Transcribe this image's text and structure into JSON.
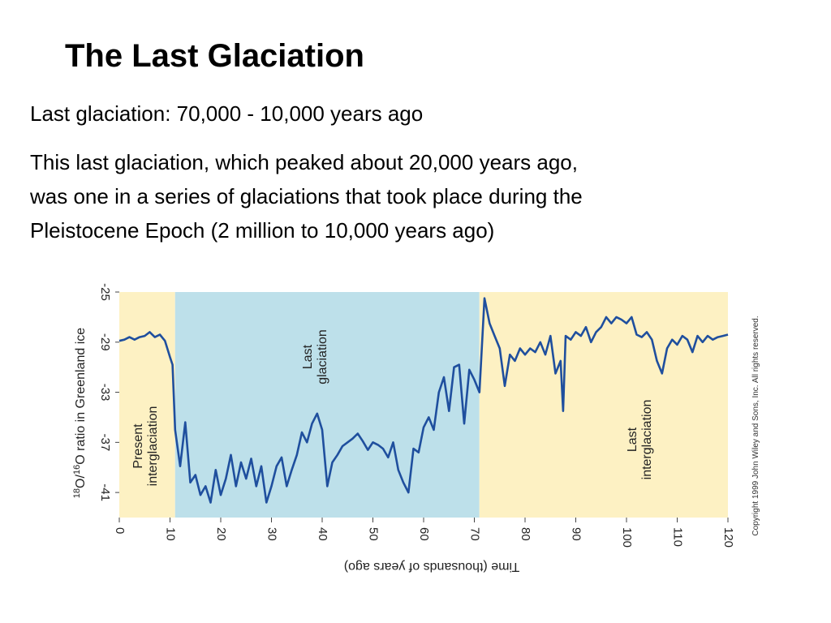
{
  "header": {
    "title": "The Last Glaciation",
    "subtitle": "Last glaciation: 70,000 - 10,000 years ago",
    "paragraph": [
      "This last glaciation, which peaked about 20,000 years ago,",
      "was one in a series of glaciations that took place during the",
      "Pleistocene Epoch (2 million to 10,000 years ago)"
    ]
  },
  "chart_data": {
    "type": "line",
    "xlabel": "Time (thousands of years ago)",
    "ylabel": [
      "18",
      "O/",
      "16",
      "O ratio in Greenland ice"
    ],
    "copyright": "Copyright 1999 John Wiley and Sons, Inc. All rights reserved.",
    "xlim": [
      0,
      120
    ],
    "xticks": [
      0,
      10,
      20,
      30,
      40,
      50,
      60,
      70,
      80,
      90,
      100,
      110,
      120
    ],
    "ylim": [
      -43,
      -25
    ],
    "yticks": [
      -25,
      -29,
      -33,
      -37,
      -41
    ],
    "regions": [
      {
        "from": 0,
        "to": 11,
        "color": "#fdf1c3",
        "label": [
          "Present",
          "interglaciation"
        ]
      },
      {
        "from": 11,
        "to": 71,
        "color": "#bde0ea",
        "label": [
          "Last",
          "glaciation"
        ]
      },
      {
        "from": 71,
        "to": 120,
        "color": "#fdf1c3",
        "label": [
          "Last",
          "interglaciation"
        ]
      }
    ],
    "series": [
      {
        "color": "#1f4f9e",
        "x": [
          0,
          1,
          2,
          3,
          4,
          5,
          6,
          7,
          8,
          9,
          10,
          10.5,
          11,
          12,
          13,
          14,
          15,
          16,
          17,
          18,
          19,
          20,
          21,
          22,
          23,
          24,
          25,
          26,
          27,
          28,
          29,
          30,
          31,
          32,
          33,
          34,
          35,
          36,
          37,
          38,
          39,
          40,
          41,
          42,
          43,
          44,
          45,
          46,
          47,
          48,
          49,
          50,
          51,
          52,
          53,
          54,
          55,
          56,
          57,
          58,
          59,
          60,
          61,
          62,
          63,
          64,
          65,
          66,
          67,
          68,
          69,
          70,
          71,
          72,
          73,
          74,
          75,
          76,
          77,
          78,
          79,
          80,
          81,
          82,
          83,
          84,
          85,
          86,
          87,
          87.5,
          88,
          89,
          90,
          91,
          92,
          93,
          94,
          95,
          96,
          97,
          98,
          99,
          100,
          101,
          102,
          103,
          104,
          105,
          106,
          107,
          108,
          109,
          110,
          111,
          112,
          113,
          114,
          115,
          116,
          117,
          118,
          119,
          120
        ],
        "values": [
          -28.9,
          -28.8,
          -28.6,
          -28.8,
          -28.6,
          -28.5,
          -28.2,
          -28.6,
          -28.4,
          -28.9,
          -30.2,
          -30.8,
          -36,
          -38.9,
          -35.4,
          -40.2,
          -39.6,
          -41.2,
          -40.5,
          -41.8,
          -39.2,
          -41.2,
          -39.9,
          -38,
          -40.5,
          -38.6,
          -39.9,
          -38.3,
          -40.5,
          -38.9,
          -41.8,
          -40.5,
          -38.9,
          -38.2,
          -40.5,
          -39.2,
          -38,
          -36.2,
          -37,
          -35.5,
          -34.7,
          -36,
          -40.5,
          -38.6,
          -38,
          -37.3,
          -37,
          -36.7,
          -36.3,
          -36.9,
          -37.6,
          -37,
          -37.2,
          -37.5,
          -38.2,
          -37,
          -39.2,
          -40.2,
          -41,
          -37.5,
          -37.8,
          -35.8,
          -35,
          -36,
          -33,
          -31.8,
          -34.5,
          -31,
          -30.8,
          -35.5,
          -31.2,
          -32,
          -33,
          -25.5,
          -27.5,
          -28.5,
          -29.5,
          -32.5,
          -30,
          -30.5,
          -29.5,
          -30,
          -29.5,
          -29.8,
          -29,
          -30,
          -28.5,
          -31.5,
          -30.5,
          -34.5,
          -28.5,
          -28.8,
          -28.2,
          -28.5,
          -27.8,
          -29,
          -28.2,
          -27.8,
          -27,
          -27.5,
          -27,
          -27.2,
          -27.5,
          -27,
          -28.4,
          -28.6,
          -28.2,
          -28.8,
          -30.5,
          -31.5,
          -29.5,
          -28.8,
          -29.2,
          -28.5,
          -28.8,
          -29.8,
          -28.5,
          -29,
          -28.5,
          -28.8,
          -28.6,
          -28.5,
          -28.4
        ]
      }
    ]
  }
}
